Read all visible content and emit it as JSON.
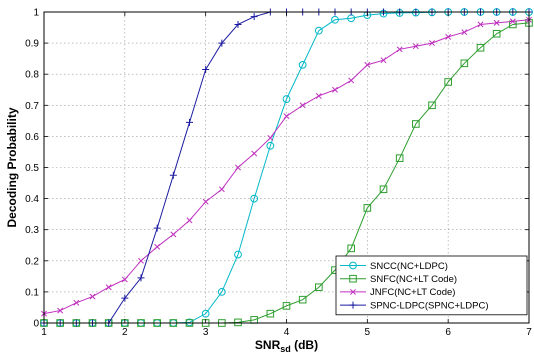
{
  "chart_data": {
    "type": "line",
    "xlabel": "SNR",
    "xlabel_sub": "sd",
    "xlabel_unit": " (dB)",
    "ylabel": "Decoding Probability",
    "xlim": [
      1,
      7
    ],
    "ylim": [
      0,
      1
    ],
    "xticks": [
      "1",
      "2",
      "3",
      "4",
      "5",
      "6",
      "7"
    ],
    "yticks": [
      "0",
      "0.1",
      "0.2",
      "0.3",
      "0.4",
      "0.5",
      "0.6",
      "0.7",
      "0.8",
      "0.9",
      "1"
    ],
    "grid": true,
    "legend_position": "bottom-right",
    "series": [
      {
        "name": "SNCC(NC+LDPC)",
        "color": "#00b8c8",
        "marker": "circle",
        "x": [
          1,
          1.2,
          1.4,
          1.6,
          1.8,
          2.0,
          2.2,
          2.4,
          2.6,
          2.8,
          3.0,
          3.2,
          3.4,
          3.6,
          3.8,
          4.0,
          4.2,
          4.4,
          4.6,
          4.8,
          5.0,
          5.2,
          5.4,
          5.6,
          5.8,
          6.0,
          6.2,
          6.4,
          6.6,
          6.8,
          7.0
        ],
        "y": [
          0,
          0,
          0,
          0,
          0,
          0,
          0,
          0,
          0,
          0.002,
          0.03,
          0.1,
          0.22,
          0.4,
          0.57,
          0.72,
          0.83,
          0.94,
          0.975,
          0.98,
          0.99,
          0.995,
          0.997,
          0.998,
          0.999,
          1,
          1,
          1,
          1,
          1,
          1
        ]
      },
      {
        "name": "SNFC(NC+LT Code)",
        "color": "#2e9e2e",
        "marker": "square",
        "x": [
          1,
          1.2,
          1.4,
          1.6,
          1.8,
          2.0,
          2.2,
          2.4,
          2.6,
          2.8,
          3.0,
          3.2,
          3.4,
          3.6,
          3.8,
          4.0,
          4.2,
          4.4,
          4.6,
          4.8,
          5.0,
          5.2,
          5.4,
          5.6,
          5.8,
          6.0,
          6.2,
          6.4,
          6.6,
          6.8,
          7.0
        ],
        "y": [
          0,
          0,
          0,
          0,
          0,
          0,
          0,
          0,
          0,
          0,
          0,
          0,
          0.002,
          0.01,
          0.03,
          0.055,
          0.075,
          0.115,
          0.17,
          0.24,
          0.37,
          0.43,
          0.53,
          0.64,
          0.7,
          0.775,
          0.835,
          0.885,
          0.93,
          0.96,
          0.965
        ]
      },
      {
        "name": "JNFC(NC+LT Code)",
        "color": "#c030c0",
        "marker": "x",
        "x": [
          1,
          1.2,
          1.4,
          1.6,
          1.8,
          2.0,
          2.2,
          2.4,
          2.6,
          2.8,
          3.0,
          3.2,
          3.4,
          3.6,
          3.8,
          4.0,
          4.2,
          4.4,
          4.6,
          4.8,
          5.0,
          5.2,
          5.4,
          5.6,
          5.8,
          6.0,
          6.2,
          6.4,
          6.6,
          6.8,
          7.0
        ],
        "y": [
          0.03,
          0.04,
          0.065,
          0.085,
          0.115,
          0.14,
          0.2,
          0.245,
          0.285,
          0.33,
          0.39,
          0.43,
          0.5,
          0.545,
          0.595,
          0.665,
          0.7,
          0.73,
          0.75,
          0.78,
          0.83,
          0.845,
          0.88,
          0.89,
          0.9,
          0.92,
          0.935,
          0.96,
          0.965,
          0.97,
          0.975
        ]
      },
      {
        "name": "SPNC-LDPC(SPNC+LDPC)",
        "color": "#1a1aa0",
        "marker": "plus",
        "x": [
          1,
          1.2,
          1.4,
          1.6,
          1.8,
          2.0,
          2.2,
          2.4,
          2.6,
          2.8,
          3.0,
          3.2,
          3.4,
          3.6,
          3.8,
          4.0,
          4.2,
          4.4,
          4.6,
          4.8,
          5.0,
          5.2,
          5.4,
          5.6,
          5.8,
          6.0,
          6.2,
          6.4,
          6.6,
          6.8,
          7.0
        ],
        "y": [
          0,
          0,
          0,
          0,
          0,
          0.08,
          0.145,
          0.305,
          0.475,
          0.645,
          0.815,
          0.9,
          0.96,
          0.985,
          1,
          1,
          1,
          1,
          1,
          1,
          1,
          1,
          1,
          1,
          1,
          1,
          1,
          1,
          1,
          1,
          1
        ]
      }
    ]
  }
}
